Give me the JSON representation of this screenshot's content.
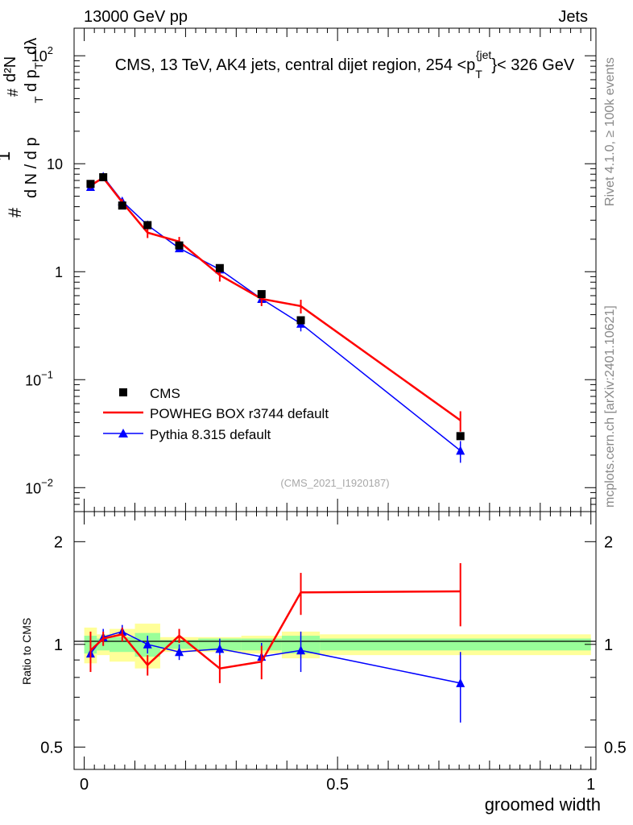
{
  "header": {
    "left": "13000 GeV pp",
    "right": "Jets"
  },
  "right_labels": {
    "rivet": "Rivet 4.1.0, ≥ 100k events",
    "mcplots": "mcplots.cern.ch [arXiv:2401.10621]"
  },
  "colors": {
    "cms": "#000000",
    "powheg": "#ff0000",
    "pythia": "#0000ff",
    "band_outer": "#ffff99",
    "band_inner": "#99ff99"
  },
  "chart_data": [
    {
      "type": "scatter",
      "panel": "main",
      "title": "CMS, 13 TeV, AK4 jets, central dijet region, 254 <p_T^{jet}< 326 GeV",
      "title_parts": {
        "pre": "CMS, 13 TeV, AK4 jets, central dijet region, 254 <p",
        "sub": "T",
        "sup": "{jet",
        "post": "}< 326 GeV"
      },
      "ylabel": "1/dN/dp_T  d²N/dp_T dλ",
      "ylabel_parts": {
        "hash": "#",
        "one": "1",
        "denom": "d N / d p",
        "sub": "T",
        "num": "d²N",
        "denom2": "d p",
        "lam": "dλ"
      },
      "yscale": "log",
      "ylim": [
        0.006,
        180
      ],
      "xlim": [
        -0.02,
        1.01
      ],
      "y_ticks": [
        {
          "value": 0.01,
          "label": "10",
          "exp": "−2"
        },
        {
          "value": 0.1,
          "label": "10",
          "exp": "−1"
        },
        {
          "value": 1,
          "label": "1",
          "exp": ""
        },
        {
          "value": 10,
          "label": "10",
          "exp": ""
        },
        {
          "value": 100,
          "label": "10",
          "exp": "2"
        }
      ],
      "watermark": "(CMS_2021_I1920187)",
      "legend_position": "lower-left",
      "series": [
        {
          "name": "CMS",
          "style": "square",
          "x": [
            0.0125,
            0.0375,
            0.075,
            0.125,
            0.1875,
            0.2675,
            0.35,
            0.4275,
            0.7425
          ],
          "y": [
            6.5,
            7.5,
            4.1,
            2.7,
            1.75,
            1.08,
            0.62,
            0.355,
            0.03
          ]
        },
        {
          "name": "POWHEG BOX r3744 default",
          "style": "line",
          "x": [
            0.0125,
            0.0375,
            0.075,
            0.125,
            0.1875,
            0.2675,
            0.35,
            0.4275,
            0.7425
          ],
          "y": [
            6.3,
            7.4,
            4.4,
            2.3,
            1.9,
            0.93,
            0.56,
            0.48,
            0.042
          ],
          "err": [
            0.4,
            0.4,
            0.3,
            0.25,
            0.2,
            0.12,
            0.08,
            0.07,
            0.009
          ]
        },
        {
          "name": "Pythia 8.315 default",
          "style": "triangle",
          "x": [
            0.0125,
            0.0375,
            0.075,
            0.125,
            0.1875,
            0.2675,
            0.35,
            0.4275,
            0.7425
          ],
          "y": [
            6.1,
            7.6,
            4.5,
            2.7,
            1.65,
            1.05,
            0.56,
            0.33,
            0.022
          ],
          "err": [
            0.4,
            0.4,
            0.3,
            0.15,
            0.12,
            0.08,
            0.07,
            0.05,
            0.005
          ]
        }
      ]
    },
    {
      "type": "scatter",
      "panel": "ratio",
      "ylabel": "Ratio to CMS",
      "xlabel": "groomed width",
      "yscale": "log",
      "ylim": [
        0.43,
        2.45
      ],
      "xlim": [
        -0.02,
        1.01
      ],
      "y_ticks": [
        0.5,
        1,
        2
      ],
      "y_tick_labels": [
        "0.5",
        "1",
        "2"
      ],
      "x_ticks": [
        0,
        0.5,
        1
      ],
      "x_tick_labels": [
        "0",
        "0.5",
        "1"
      ],
      "band_bins": [
        0,
        0.025,
        0.05,
        0.1,
        0.15,
        0.225,
        0.31,
        0.39,
        0.465,
        1.0
      ],
      "band_inner": [
        0.06,
        0.04,
        0.05,
        0.08,
        0.03,
        0.04,
        0.04,
        0.06,
        0.04
      ],
      "band_outer": [
        0.12,
        0.07,
        0.11,
        0.15,
        0.05,
        0.05,
        0.06,
        0.09,
        0.07
      ],
      "series": [
        {
          "name": "POWHEG BOX r3744 default",
          "x": [
            0.0125,
            0.0375,
            0.075,
            0.125,
            0.1875,
            0.2675,
            0.35,
            0.4275,
            0.7425
          ],
          "y": [
            0.96,
            1.04,
            1.07,
            0.87,
            1.06,
            0.85,
            0.89,
            1.42,
            1.43
          ],
          "err": [
            0.13,
            0.05,
            0.05,
            0.06,
            0.05,
            0.08,
            0.1,
            0.2,
            0.3
          ]
        },
        {
          "name": "Pythia 8.315 default",
          "x": [
            0.0125,
            0.0375,
            0.075,
            0.125,
            0.1875,
            0.2675,
            0.35,
            0.4275,
            0.7425
          ],
          "y": [
            0.94,
            1.05,
            1.09,
            1.0,
            0.95,
            0.97,
            0.92,
            0.96,
            0.77
          ],
          "err": [
            0.06,
            0.06,
            0.05,
            0.06,
            0.05,
            0.07,
            0.09,
            0.13,
            0.18
          ]
        }
      ]
    }
  ]
}
